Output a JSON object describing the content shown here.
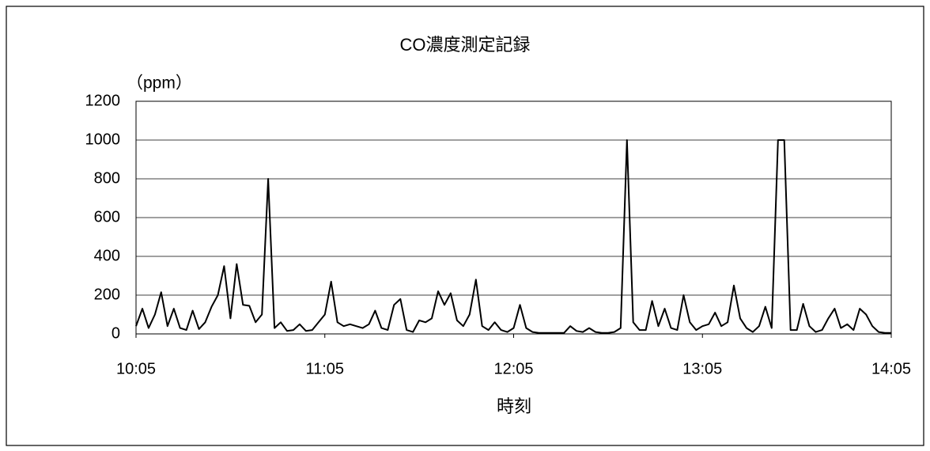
{
  "chart_data": {
    "type": "line",
    "title": "CO濃度測定記録",
    "y_label": "（ppm）",
    "x_label": "時刻",
    "x": [
      "10:05",
      "10:07",
      "10:09",
      "10:11",
      "10:13",
      "10:15",
      "10:17",
      "10:19",
      "10:21",
      "10:23",
      "10:25",
      "10:27",
      "10:29",
      "10:31",
      "10:33",
      "10:35",
      "10:37",
      "10:39",
      "10:41",
      "10:43",
      "10:45",
      "10:47",
      "10:49",
      "10:51",
      "10:53",
      "10:55",
      "10:57",
      "10:59",
      "11:01",
      "11:03",
      "11:05",
      "11:07",
      "11:09",
      "11:11",
      "11:13",
      "11:15",
      "11:17",
      "11:19",
      "11:21",
      "11:23",
      "11:25",
      "11:27",
      "11:29",
      "11:31",
      "11:33",
      "11:35",
      "11:37",
      "11:39",
      "11:41",
      "11:43",
      "11:45",
      "11:47",
      "11:49",
      "11:51",
      "11:53",
      "11:55",
      "11:57",
      "11:59",
      "12:01",
      "12:03",
      "12:05",
      "12:07",
      "12:09",
      "12:11",
      "12:13",
      "12:15",
      "12:17",
      "12:19",
      "12:21",
      "12:23",
      "12:25",
      "12:27",
      "12:29",
      "12:31",
      "12:33",
      "12:35",
      "12:37",
      "12:39",
      "12:41",
      "12:43",
      "12:45",
      "12:47",
      "12:49",
      "12:51",
      "12:53",
      "12:55",
      "12:57",
      "12:59",
      "13:01",
      "13:03",
      "13:05",
      "13:07",
      "13:09",
      "13:11",
      "13:13",
      "13:15",
      "13:17",
      "13:19",
      "13:21",
      "13:23",
      "13:25",
      "13:27",
      "13:29",
      "13:31",
      "13:33",
      "13:35",
      "13:37",
      "13:39",
      "13:41",
      "13:43",
      "13:45",
      "13:47",
      "13:49",
      "13:51",
      "13:53",
      "13:55",
      "13:57",
      "13:59",
      "14:01",
      "14:03",
      "14:05"
    ],
    "values": [
      40,
      130,
      30,
      100,
      215,
      40,
      130,
      30,
      20,
      120,
      25,
      60,
      140,
      200,
      350,
      80,
      360,
      150,
      145,
      60,
      100,
      800,
      30,
      60,
      15,
      20,
      50,
      15,
      20,
      60,
      100,
      270,
      60,
      40,
      50,
      40,
      30,
      50,
      120,
      30,
      20,
      150,
      180,
      20,
      10,
      70,
      60,
      80,
      220,
      150,
      210,
      70,
      40,
      100,
      280,
      40,
      20,
      60,
      20,
      10,
      30,
      150,
      30,
      10,
      5,
      5,
      5,
      5,
      5,
      40,
      15,
      10,
      30,
      10,
      5,
      5,
      10,
      30,
      1000,
      60,
      20,
      20,
      170,
      40,
      130,
      30,
      20,
      200,
      60,
      20,
      40,
      50,
      110,
      40,
      60,
      250,
      80,
      30,
      10,
      40,
      140,
      30,
      1000,
      1000,
      20,
      20,
      155,
      40,
      10,
      20,
      80,
      130,
      30,
      50,
      20,
      130,
      100,
      40,
      10,
      5,
      5
    ],
    "color": "#000000",
    "xlim": [
      "10:05",
      "14:05"
    ],
    "xticks": [
      "10:05",
      "11:05",
      "12:05",
      "13:05",
      "14:05"
    ],
    "ylim": [
      0,
      1200
    ],
    "yticks": [
      0,
      200,
      400,
      600,
      800,
      1000,
      1200
    ],
    "grid": true
  }
}
